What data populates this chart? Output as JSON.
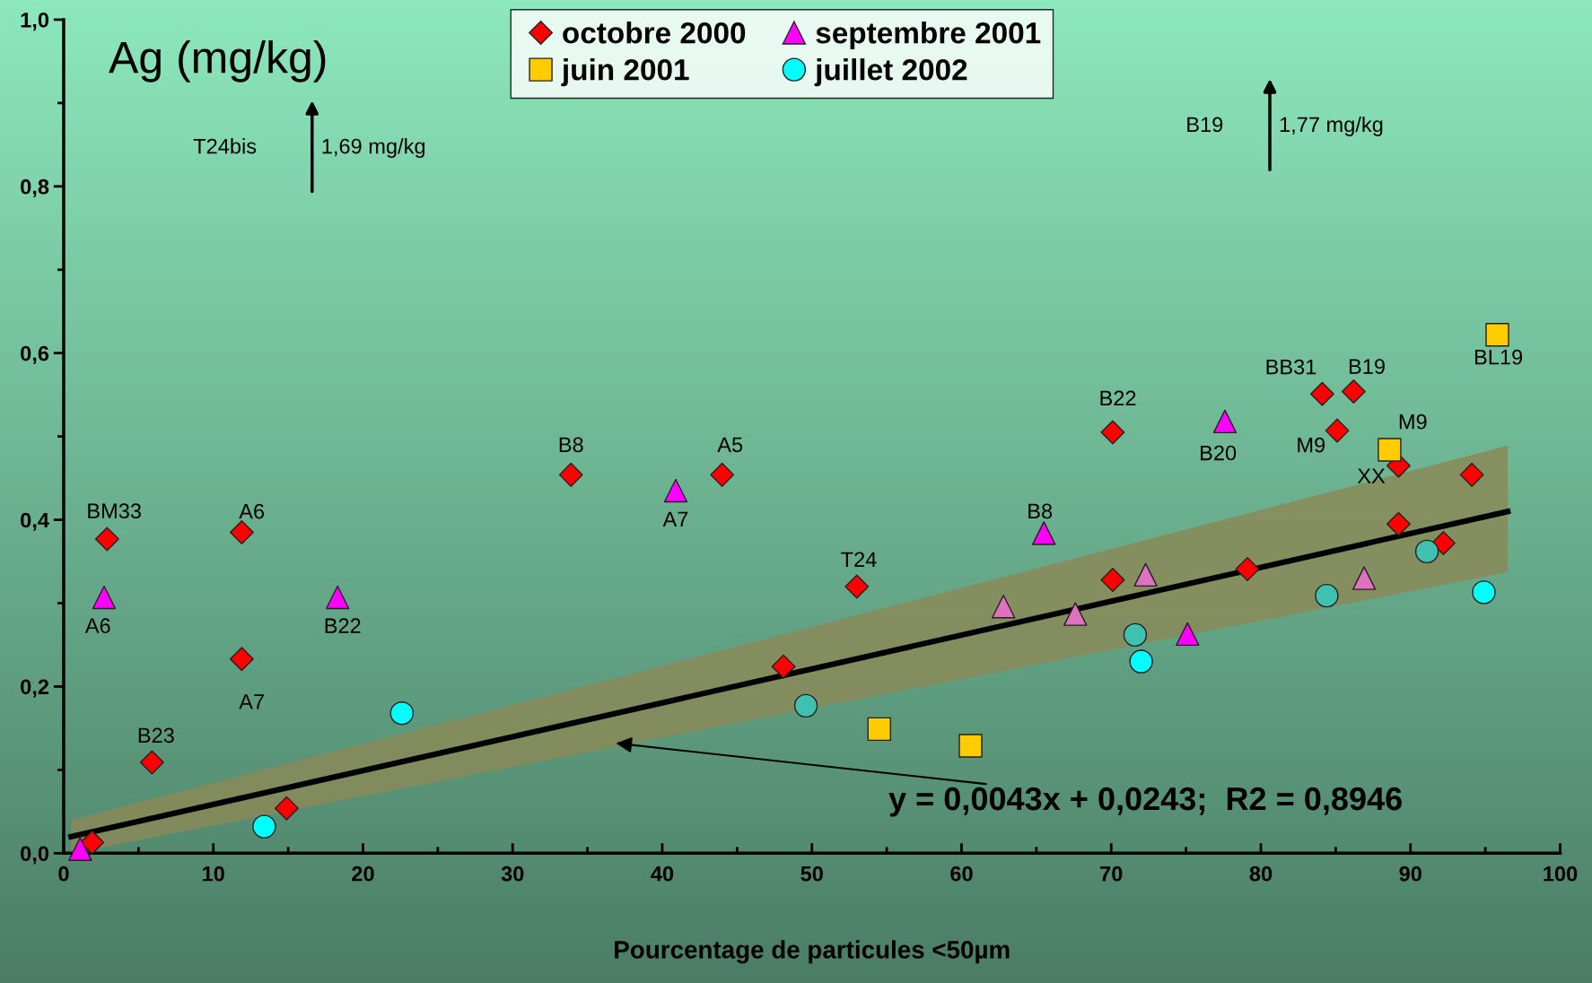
{
  "chart_data": {
    "type": "scatter",
    "title": "Ag (mg/kg)",
    "xlabel": "Pourcentage de particules <50µm",
    "xlim": [
      0,
      100
    ],
    "xticks": [
      0,
      10,
      20,
      30,
      40,
      50,
      60,
      70,
      80,
      90,
      100
    ],
    "ylim": [
      0,
      1.0
    ],
    "yticks": [
      {
        "value": 0,
        "label": "0,0"
      },
      {
        "value": 0.2,
        "label": "0,2"
      },
      {
        "value": 0.4,
        "label": "0,4"
      },
      {
        "value": 0.6,
        "label": "0,6"
      },
      {
        "value": 0.8,
        "label": "0,8"
      },
      {
        "value": 1.0,
        "label": "1,0"
      }
    ],
    "grid": false,
    "legend": "top",
    "series": [
      {
        "name": "octobre 2000",
        "color": "#ff0000",
        "marker": "diamond",
        "x": [
          1.9,
          2.9,
          5.9,
          11.9,
          11.9,
          14.9,
          33.9,
          44.0,
          48.1,
          53.0,
          70.1,
          70.1,
          79.1,
          84.1,
          86.2,
          85.1,
          89.2,
          89.2,
          92.2,
          94.1
        ],
        "values": [
          0.013,
          0.377,
          0.109,
          0.385,
          0.233,
          0.054,
          0.454,
          0.454,
          0.224,
          0.32,
          0.505,
          0.328,
          0.341,
          0.551,
          0.554,
          0.507,
          0.465,
          0.395,
          0.372,
          0.454
        ]
      },
      {
        "name": "juin 2001",
        "color": "#ffcc00",
        "marker": "square",
        "x": [
          54.5,
          60.6,
          88.6,
          95.8
        ],
        "values": [
          0.149,
          0.129,
          0.484,
          0.622
        ]
      },
      {
        "name": "septembre 2001",
        "color": "#ff00ff",
        "marker": "triangle",
        "x": [
          1.1,
          2.7,
          18.3,
          40.9,
          62.8,
          65.5,
          67.6,
          72.3,
          75.1,
          77.6,
          86.9
        ],
        "values": [
          0.005,
          0.307,
          0.307,
          0.435,
          0.296,
          0.384,
          0.287,
          0.334,
          0.263,
          0.518,
          0.33
        ],
        "colors": [
          "#ff00ff",
          "#ff00ff",
          "#ff00ff",
          "#ff00ff",
          "#e070c0",
          "#ff00ff",
          "#e070c0",
          "#e070c0",
          "#ff00ff",
          "#ff00ff",
          "#e070c0"
        ]
      },
      {
        "name": "juillet 2002",
        "color": "#00ffff",
        "marker": "circle",
        "x": [
          13.4,
          22.6,
          49.6,
          71.6,
          72.0,
          84.4,
          91.1,
          94.9
        ],
        "values": [
          0.032,
          0.168,
          0.177,
          0.262,
          0.23,
          0.309,
          0.362,
          0.313
        ],
        "colors": [
          "#00ffff",
          "#00ffff",
          "#40c0b0",
          "#40c0b0",
          "#00ffff",
          "#40c0b0",
          "#40c0b0",
          "#00ffff"
        ]
      },
      {
        "type": "line",
        "color": "#000000",
        "marker": "none",
        "x": [
          0.5,
          96.5
        ],
        "values": [
          0.02,
          0.41
        ],
        "lower": [
          0.0,
          0.337
        ],
        "upper": [
          0.04,
          0.489
        ]
      }
    ],
    "annotations": [
      {
        "text": "BM33",
        "x": 2.9,
        "y": 0.377
      },
      {
        "text": "A6",
        "x": 11.9,
        "y": 0.385
      },
      {
        "text": "A6",
        "x": 2.7,
        "y": 0.307
      },
      {
        "text": "B22",
        "x": 18.3,
        "y": 0.307
      },
      {
        "text": "A7",
        "x": 11.9,
        "y": 0.233
      },
      {
        "text": "B23",
        "x": 5.9,
        "y": 0.109
      },
      {
        "text": "B8",
        "x": 33.9,
        "y": 0.454
      },
      {
        "text": "A5",
        "x": 44.0,
        "y": 0.454
      },
      {
        "text": "A7",
        "x": 40.9,
        "y": 0.435
      },
      {
        "text": "T24",
        "x": 53.0,
        "y": 0.32
      },
      {
        "text": "B8",
        "x": 65.5,
        "y": 0.384
      },
      {
        "text": "B22",
        "x": 70.1,
        "y": 0.505
      },
      {
        "text": "B20",
        "x": 77.6,
        "y": 0.518
      },
      {
        "text": "BB31",
        "x": 84.1,
        "y": 0.551
      },
      {
        "text": "B19",
        "x": 86.2,
        "y": 0.554
      },
      {
        "text": "M9",
        "x": 85.1,
        "y": 0.507
      },
      {
        "text": "M9",
        "x": 88.6,
        "y": 0.484
      },
      {
        "text": "XX",
        "x": 89.2,
        "y": 0.465
      },
      {
        "text": "BL19",
        "x": 95.8,
        "y": 0.622
      },
      "T24bis",
      "1,69 mg/kg",
      "B19",
      "1,77 mg/kg",
      {
        "text": "y = 0,0043x + 0,0243;  R2 = 0,8946",
        "x": 36.9,
        "y": 0.132
      }
    ]
  }
}
